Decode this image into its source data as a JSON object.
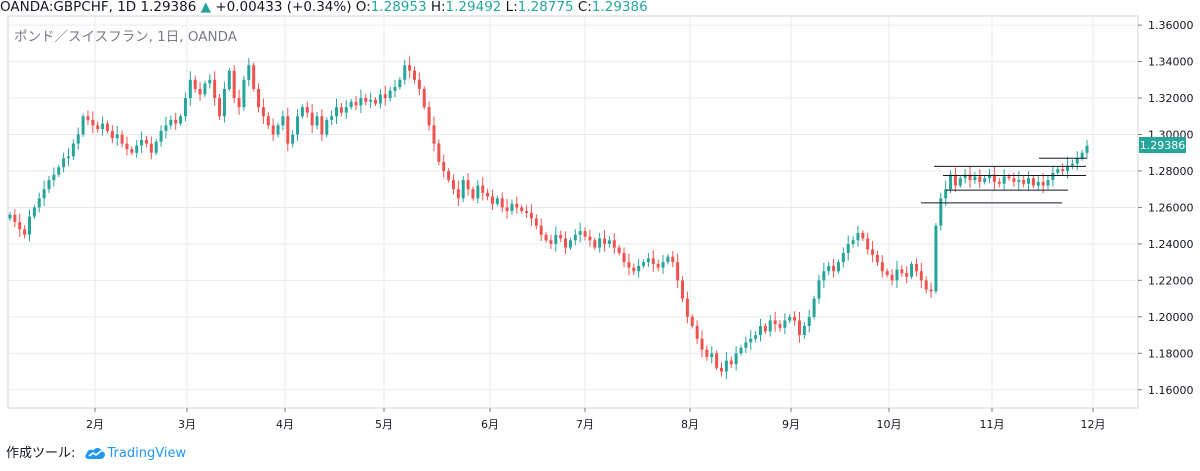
{
  "header": {
    "symbol": "OANDA:GBPCHF, 1D",
    "last": "1.29386",
    "change_arrow": "▲",
    "change": "+0.00433 (+0.34%)",
    "open_label": "O:",
    "open": "1.28953",
    "high_label": "H:",
    "high": "1.29492",
    "low_label": "L:",
    "low": "1.28775",
    "close_label": "C:",
    "close": "1.29386"
  },
  "chart_data": {
    "type": "candlestick",
    "legend": "ポンド／スイスフラン, 1日, OANDA",
    "ylim": [
      1.15,
      1.365
    ],
    "y_ticks": [
      "1.16000",
      "1.18000",
      "1.20000",
      "1.22000",
      "1.24000",
      "1.26000",
      "1.28000",
      "1.30000",
      "1.32000",
      "1.34000",
      "1.36000"
    ],
    "x_ticks": [
      "2月",
      "3月",
      "4月",
      "5月",
      "6月",
      "7月",
      "8月",
      "9月",
      "10月",
      "11月",
      "12月"
    ],
    "last_price_label": "1.29386",
    "colors": {
      "up": "#26a69a",
      "down": "#ef5350",
      "grid": "#e6eaf0",
      "axis": "#787b86"
    },
    "horizontal_lines": [
      {
        "y": 1.2825,
        "x_start": "10月",
        "x_end": "12月"
      },
      {
        "y": 1.2775,
        "x_start": "10月",
        "x_end": "12月"
      },
      {
        "y": 1.2695,
        "x_start": "10月",
        "x_end": "12月"
      },
      {
        "y": 1.2625,
        "x_start": "10月",
        "x_end": "11月"
      },
      {
        "y": 1.287,
        "x_start": "11月",
        "x_end": "12月"
      }
    ],
    "series": [
      {
        "name": "GBPCHF",
        "close": [
          1.256,
          1.252,
          1.248,
          1.245,
          1.255,
          1.26,
          1.265,
          1.27,
          1.275,
          1.278,
          1.282,
          1.287,
          1.288,
          1.295,
          1.3,
          1.31,
          1.308,
          1.305,
          1.303,
          1.306,
          1.302,
          1.298,
          1.3,
          1.295,
          1.292,
          1.29,
          1.294,
          1.297,
          1.295,
          1.29,
          1.296,
          1.302,
          1.305,
          1.308,
          1.306,
          1.31,
          1.32,
          1.33,
          1.325,
          1.322,
          1.328,
          1.33,
          1.32,
          1.31,
          1.325,
          1.335,
          1.32,
          1.315,
          1.33,
          1.338,
          1.325,
          1.315,
          1.31,
          1.305,
          1.3,
          1.305,
          1.31,
          1.295,
          1.3,
          1.31,
          1.315,
          1.312,
          1.305,
          1.31,
          1.3,
          1.308,
          1.31,
          1.315,
          1.312,
          1.315,
          1.318,
          1.316,
          1.32,
          1.318,
          1.319,
          1.317,
          1.322,
          1.32,
          1.324,
          1.326,
          1.33,
          1.338,
          1.335,
          1.33,
          1.325,
          1.315,
          1.305,
          1.295,
          1.285,
          1.28,
          1.275,
          1.27,
          1.265,
          1.275,
          1.27,
          1.265,
          1.272,
          1.268,
          1.266,
          1.262,
          1.265,
          1.26,
          1.258,
          1.262,
          1.26,
          1.258,
          1.257,
          1.254,
          1.25,
          1.245,
          1.242,
          1.24,
          1.245,
          1.243,
          1.238,
          1.242,
          1.245,
          1.247,
          1.244,
          1.242,
          1.238,
          1.243,
          1.24,
          1.242,
          1.238,
          1.235,
          1.23,
          1.227,
          1.225,
          1.228,
          1.23,
          1.232,
          1.229,
          1.227,
          1.23,
          1.233,
          1.23,
          1.22,
          1.21,
          1.2,
          1.195,
          1.188,
          1.182,
          1.178,
          1.18,
          1.172,
          1.17,
          1.176,
          1.174,
          1.18,
          1.183,
          1.186,
          1.188,
          1.19,
          1.195,
          1.192,
          1.198,
          1.196,
          1.194,
          1.198,
          1.2,
          1.198,
          1.19,
          1.195,
          1.2,
          1.21,
          1.22,
          1.225,
          1.228,
          1.225,
          1.23,
          1.235,
          1.24,
          1.242,
          1.246,
          1.243,
          1.237,
          1.234,
          1.23,
          1.225,
          1.223,
          1.22,
          1.226,
          1.224,
          1.222,
          1.229,
          1.225,
          1.22,
          1.215,
          1.214,
          1.25,
          1.265,
          1.27,
          1.278,
          1.272,
          1.276,
          1.278,
          1.275,
          1.277,
          1.274,
          1.276,
          1.278,
          1.274,
          1.273,
          1.277,
          1.276,
          1.274,
          1.275,
          1.273,
          1.276,
          1.272,
          1.274,
          1.272,
          1.275,
          1.279,
          1.281,
          1.28,
          1.283,
          1.284,
          1.287,
          1.29,
          1.2938
        ]
      }
    ]
  },
  "footer": {
    "made_with": "作成ツール:",
    "brand": "TradingView"
  }
}
